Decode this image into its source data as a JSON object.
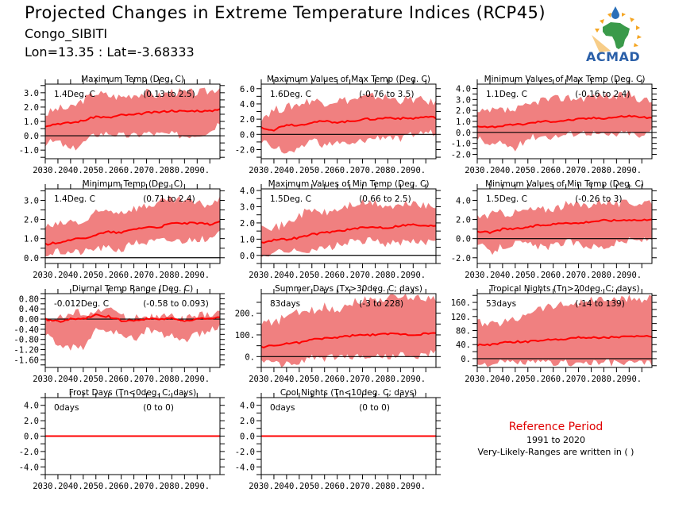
{
  "header": {
    "title": "Projected Changes in Extreme Temperature Indices (RCP45)",
    "station": "Congo_SIBITI",
    "coords": "Lon=13.35 : Lat=-3.68333",
    "logo_text": "ACMAD"
  },
  "reference": {
    "title": "Reference Period",
    "period": "1991 to 2020",
    "note": "Very-Likely-Ranges are written in ( )"
  },
  "colors": {
    "band": "#f08080",
    "mean_line": "#ff0000",
    "zero_line": "#000000",
    "reference_title": "#e00000",
    "logo_blue": "#2a5fa8",
    "logo_green": "#3a9a4a",
    "logo_orange": "#f5a623"
  },
  "chart_data": [
    {
      "type": "area",
      "title": "Maximum Temp (Deg. C)",
      "summary": "1.4Deg. C",
      "range": "(0.13 to 2.5)",
      "xlim": [
        2030,
        2099
      ],
      "xticks": [
        "2030.",
        "2040.",
        "2050.",
        "2060.",
        "2070.",
        "2080.",
        "2090."
      ],
      "ylim": [
        -1.6,
        3.6
      ],
      "yticks": [
        -1.0,
        0.0,
        1.0,
        2.0,
        3.0
      ],
      "ytick_labels": [
        "-1.0",
        "0.0",
        "1.0",
        "2.0",
        "3.0"
      ],
      "x": [
        2030,
        2035,
        2040,
        2045,
        2050,
        2055,
        2060,
        2065,
        2070,
        2075,
        2080,
        2085,
        2090,
        2095,
        2099
      ],
      "mean": [
        0.7,
        0.85,
        0.9,
        1.05,
        1.35,
        1.25,
        1.45,
        1.45,
        1.6,
        1.65,
        1.75,
        1.7,
        1.75,
        1.7,
        1.9
      ],
      "upper": [
        1.5,
        1.9,
        1.9,
        2.5,
        3.0,
        2.8,
        2.7,
        2.9,
        3.0,
        2.8,
        3.1,
        3.0,
        3.0,
        3.1,
        3.4
      ],
      "lower": [
        -0.5,
        -0.4,
        -1.0,
        -0.5,
        0.1,
        0.2,
        0.0,
        0.0,
        0.2,
        0.1,
        0.1,
        0.0,
        0.1,
        0.3,
        1.0
      ]
    },
    {
      "type": "area",
      "title": "Maximum Values of Max Temp (Deg. C)",
      "summary": "1.6Deg. C",
      "range": "(-0.76 to 3.5)",
      "xlim": [
        2030,
        2099
      ],
      "xticks": [
        "2030.",
        "2040.",
        "2050.",
        "2060.",
        "2070.",
        "2080.",
        "2090."
      ],
      "ylim": [
        -3.2,
        6.6
      ],
      "yticks": [
        -2.0,
        0.0,
        2.0,
        4.0,
        6.0
      ],
      "ytick_labels": [
        "-2.0",
        "0.0",
        "2.0",
        "4.0",
        "6.0"
      ],
      "x": [
        2030,
        2035,
        2040,
        2045,
        2050,
        2055,
        2060,
        2065,
        2070,
        2075,
        2080,
        2085,
        2090,
        2095,
        2099
      ],
      "mean": [
        0.9,
        0.6,
        1.3,
        1.2,
        1.6,
        1.7,
        1.6,
        1.7,
        2.0,
        2.0,
        2.2,
        2.1,
        2.1,
        2.3,
        2.2
      ],
      "upper": [
        2.2,
        3.2,
        3.5,
        4.0,
        4.5,
        4.2,
        4.5,
        4.5,
        4.8,
        5.0,
        4.8,
        4.5,
        4.6,
        4.4,
        4.0
      ],
      "lower": [
        -0.8,
        -1.5,
        -2.5,
        -2.2,
        -0.5,
        -1.5,
        -1.0,
        -1.5,
        -0.8,
        -0.5,
        -0.2,
        -0.8,
        0.0,
        0.3,
        0.2
      ]
    },
    {
      "type": "area",
      "title": "Minimum Values of Max Temp (Deg. C)",
      "summary": "1.1Deg. C",
      "range": "(-0.16 to 2.4)",
      "xlim": [
        2030,
        2099
      ],
      "xticks": [
        "2030.",
        "2040.",
        "2050.",
        "2060.",
        "2070.",
        "2080.",
        "2090."
      ],
      "ylim": [
        -2.4,
        4.4
      ],
      "yticks": [
        -2.0,
        -1.0,
        0.0,
        1.0,
        2.0,
        3.0,
        4.0
      ],
      "ytick_labels": [
        "-2.0",
        "-1.0",
        "0.0",
        "1.0",
        "2.0",
        "3.0",
        "4.0"
      ],
      "x": [
        2030,
        2035,
        2040,
        2045,
        2050,
        2055,
        2060,
        2065,
        2070,
        2075,
        2080,
        2085,
        2090,
        2095,
        2099
      ],
      "mean": [
        0.6,
        0.5,
        0.6,
        0.7,
        0.8,
        1.0,
        1.0,
        1.1,
        1.2,
        1.3,
        1.3,
        1.4,
        1.5,
        1.4,
        1.3
      ],
      "upper": [
        1.7,
        1.9,
        2.0,
        2.0,
        2.4,
        3.0,
        3.0,
        3.2,
        3.1,
        3.3,
        3.4,
        3.2,
        3.5,
        3.0,
        2.8
      ],
      "lower": [
        -0.5,
        -1.2,
        -1.0,
        -1.5,
        -0.5,
        -0.3,
        -0.4,
        -0.2,
        0.0,
        0.0,
        -0.3,
        -0.2,
        0.0,
        -0.5,
        0.3
      ]
    },
    {
      "type": "area",
      "title": "Minimum Temp (Deg. C)",
      "summary": "1.4Deg. C",
      "range": "(0.71 to 2.4)",
      "xlim": [
        2030,
        2099
      ],
      "xticks": [
        "2030.",
        "2040.",
        "2050.",
        "2060.",
        "2070.",
        "2080.",
        "2090."
      ],
      "ylim": [
        -0.3,
        3.6
      ],
      "yticks": [
        0.0,
        1.0,
        2.0,
        3.0
      ],
      "ytick_labels": [
        "0.0",
        "1.0",
        "2.0",
        "3.0"
      ],
      "x": [
        2030,
        2035,
        2040,
        2045,
        2050,
        2055,
        2060,
        2065,
        2070,
        2075,
        2080,
        2085,
        2090,
        2095,
        2099
      ],
      "mean": [
        0.7,
        0.8,
        0.95,
        1.0,
        1.2,
        1.35,
        1.3,
        1.5,
        1.6,
        1.6,
        1.8,
        1.8,
        1.8,
        1.75,
        1.9
      ],
      "upper": [
        1.6,
        1.7,
        1.9,
        1.8,
        2.3,
        2.5,
        2.4,
        2.6,
        2.7,
        2.9,
        3.0,
        3.0,
        2.8,
        2.8,
        3.0
      ],
      "lower": [
        0.2,
        0.3,
        0.3,
        0.3,
        0.5,
        0.5,
        0.4,
        0.8,
        0.8,
        0.9,
        0.9,
        0.9,
        1.0,
        0.9,
        1.3
      ]
    },
    {
      "type": "area",
      "title": "Maximum Values of Min Temp (Deg. C)",
      "summary": "1.5Deg. C",
      "range": "(0.66 to 2.5)",
      "xlim": [
        2030,
        2099
      ],
      "xticks": [
        "2030.",
        "2040.",
        "2050.",
        "2060.",
        "2070.",
        "2080.",
        "2090."
      ],
      "ylim": [
        -0.5,
        4.1
      ],
      "yticks": [
        0.0,
        1.0,
        2.0,
        3.0,
        4.0
      ],
      "ytick_labels": [
        "0.0",
        "1.0",
        "2.0",
        "3.0",
        "4.0"
      ],
      "x": [
        2030,
        2035,
        2040,
        2045,
        2050,
        2055,
        2060,
        2065,
        2070,
        2075,
        2080,
        2085,
        2090,
        2095,
        2099
      ],
      "mean": [
        0.8,
        0.95,
        1.0,
        1.1,
        1.3,
        1.4,
        1.5,
        1.6,
        1.7,
        1.75,
        1.7,
        1.85,
        1.9,
        1.8,
        1.85
      ],
      "upper": [
        2.1,
        1.7,
        1.9,
        2.5,
        2.8,
        2.6,
        2.8,
        3.1,
        3.2,
        3.2,
        3.0,
        3.0,
        3.3,
        3.0,
        2.9
      ],
      "lower": [
        0.0,
        0.2,
        0.3,
        0.2,
        0.4,
        0.4,
        0.6,
        0.8,
        0.9,
        0.9,
        0.7,
        0.8,
        0.8,
        0.8,
        1.1
      ]
    },
    {
      "type": "area",
      "title": "Minimum Values of Min Temp (Deg. C)",
      "summary": "1.5Deg. C",
      "range": "(-0.26 to 3)",
      "xlim": [
        2030,
        2099
      ],
      "xticks": [
        "2030.",
        "2040.",
        "2050.",
        "2060.",
        "2070.",
        "2080.",
        "2090."
      ],
      "ylim": [
        -2.6,
        5.2
      ],
      "yticks": [
        -2.0,
        0.0,
        2.0,
        4.0
      ],
      "ytick_labels": [
        "-2.0",
        "0.0",
        "2.0",
        "4.0"
      ],
      "x": [
        2030,
        2035,
        2040,
        2045,
        2050,
        2055,
        2060,
        2065,
        2070,
        2075,
        2080,
        2085,
        2090,
        2095,
        2099
      ],
      "mean": [
        0.8,
        0.6,
        1.0,
        1.0,
        1.2,
        1.4,
        1.5,
        1.7,
        1.6,
        1.8,
        1.9,
        1.9,
        2.0,
        1.9,
        2.1
      ],
      "upper": [
        2.3,
        2.5,
        2.7,
        2.7,
        3.0,
        3.0,
        3.2,
        3.5,
        3.5,
        3.6,
        4.0,
        3.6,
        3.7,
        3.8,
        4.0
      ],
      "lower": [
        -0.5,
        -1.5,
        -0.8,
        -0.5,
        -0.6,
        -0.9,
        -0.8,
        -0.3,
        -0.6,
        -0.8,
        -0.9,
        -0.5,
        -0.2,
        -0.2,
        0.0
      ]
    },
    {
      "type": "area",
      "title": "Diurnal Temp Range (Deg. C)",
      "summary": "-0.012Deg. C",
      "range": "(-0.58 to 0.093)",
      "xlim": [
        2030,
        2099
      ],
      "xticks": [
        "2030.",
        "2040.",
        "2050.",
        "2060.",
        "2070.",
        "2080.",
        "2090."
      ],
      "ylim": [
        -1.9,
        1.0
      ],
      "yticks": [
        -1.6,
        -1.2,
        -0.8,
        -0.4,
        0.0,
        0.4,
        0.8
      ],
      "ytick_labels": [
        "-1.60",
        "-1.20",
        "-0.80",
        "-0.40",
        "0.00",
        "0.40",
        "0.80"
      ],
      "x": [
        2030,
        2035,
        2040,
        2045,
        2050,
        2055,
        2060,
        2065,
        2070,
        2075,
        2080,
        2085,
        2090,
        2095,
        2099
      ],
      "mean": [
        0.0,
        -0.1,
        0.0,
        0.0,
        0.15,
        0.1,
        -0.05,
        -0.05,
        0.0,
        0.0,
        0.05,
        -0.1,
        0.0,
        0.05,
        0.05
      ],
      "upper": [
        0.05,
        0.0,
        0.2,
        0.3,
        0.2,
        0.5,
        0.1,
        0.1,
        0.1,
        0.05,
        0.1,
        0.0,
        0.1,
        0.2,
        0.3
      ],
      "lower": [
        -0.6,
        -1.0,
        -1.1,
        -1.1,
        -0.4,
        -0.5,
        -0.6,
        -0.8,
        -0.4,
        -0.6,
        -0.6,
        -0.9,
        -0.6,
        -0.5,
        -0.2
      ]
    },
    {
      "type": "area",
      "title": "Summer Days (Tx>30deg. C; days)",
      "summary": "83days",
      "range": "(-3 to 228)",
      "xlim": [
        2030,
        2099
      ],
      "xticks": [
        "2030.",
        "2040.",
        "2050.",
        "2060.",
        "2070.",
        "2080.",
        "2090."
      ],
      "ylim": [
        -50,
        290
      ],
      "yticks": [
        0,
        100,
        200
      ],
      "ytick_labels": [
        "0.",
        "100.",
        "200."
      ],
      "x": [
        2030,
        2035,
        2040,
        2045,
        2050,
        2055,
        2060,
        2065,
        2070,
        2075,
        2080,
        2085,
        2090,
        2095,
        2099
      ],
      "mean": [
        45,
        50,
        60,
        65,
        78,
        85,
        88,
        95,
        100,
        100,
        105,
        105,
        100,
        105,
        108
      ],
      "upper": [
        160,
        150,
        190,
        200,
        210,
        230,
        215,
        250,
        260,
        260,
        270,
        275,
        275,
        270,
        270
      ],
      "lower": [
        -10,
        -35,
        -35,
        -30,
        0,
        -10,
        0,
        0,
        0,
        0,
        0,
        10,
        -10,
        10,
        20
      ]
    },
    {
      "type": "area",
      "title": "Tropical Nights (Tn>20deg. C; days)",
      "summary": "53days",
      "range": "(-14 to 139)",
      "xlim": [
        2030,
        2099
      ],
      "xticks": [
        "2030.",
        "2040.",
        "2050.",
        "2060.",
        "2070.",
        "2080.",
        "2090."
      ],
      "ylim": [
        -25,
        185
      ],
      "yticks": [
        0,
        40,
        80,
        120,
        160
      ],
      "ytick_labels": [
        "0.",
        "40.",
        "80.",
        "120.",
        "160."
      ],
      "x": [
        2030,
        2035,
        2040,
        2045,
        2050,
        2055,
        2060,
        2065,
        2070,
        2075,
        2080,
        2085,
        2090,
        2095,
        2099
      ],
      "mean": [
        38,
        40,
        45,
        48,
        48,
        52,
        55,
        57,
        60,
        60,
        60,
        62,
        62,
        63,
        63
      ],
      "upper": [
        105,
        95,
        105,
        110,
        135,
        145,
        150,
        155,
        160,
        165,
        170,
        165,
        170,
        170,
        175
      ],
      "lower": [
        -15,
        -15,
        -12,
        -12,
        -12,
        -12,
        -12,
        -12,
        -12,
        -12,
        -12,
        -12,
        -12,
        -12,
        -12
      ]
    },
    {
      "type": "area",
      "title": "Frost Days (Tn<0deg. C; days)",
      "summary": "0days",
      "range": "(0 to 0)",
      "xlim": [
        2030,
        2099
      ],
      "xticks": [
        "2030.",
        "2040.",
        "2050.",
        "2060.",
        "2070.",
        "2080.",
        "2090."
      ],
      "ylim": [
        -5,
        5
      ],
      "yticks": [
        -4.0,
        -2.0,
        0.0,
        2.0,
        4.0
      ],
      "ytick_labels": [
        "-4.0",
        "-2.0",
        "0.0",
        "2.0",
        "4.0"
      ],
      "x": [
        2030,
        2099
      ],
      "mean": [
        0,
        0
      ],
      "upper": [
        0,
        0
      ],
      "lower": [
        0,
        0
      ]
    },
    {
      "type": "area",
      "title": "Cool Nights (Tn<10deg. C; days)",
      "summary": "0days",
      "range": "(0 to 0)",
      "xlim": [
        2030,
        2099
      ],
      "xticks": [
        "2030.",
        "2040.",
        "2050.",
        "2060.",
        "2070.",
        "2080.",
        "2090."
      ],
      "ylim": [
        -5,
        5
      ],
      "yticks": [
        -4.0,
        -2.0,
        0.0,
        2.0,
        4.0
      ],
      "ytick_labels": [
        "-4.0",
        "-2.0",
        "0.0",
        "2.0",
        "4.0"
      ],
      "x": [
        2030,
        2099
      ],
      "mean": [
        0,
        0
      ],
      "upper": [
        0,
        0
      ],
      "lower": [
        0,
        0
      ]
    }
  ]
}
